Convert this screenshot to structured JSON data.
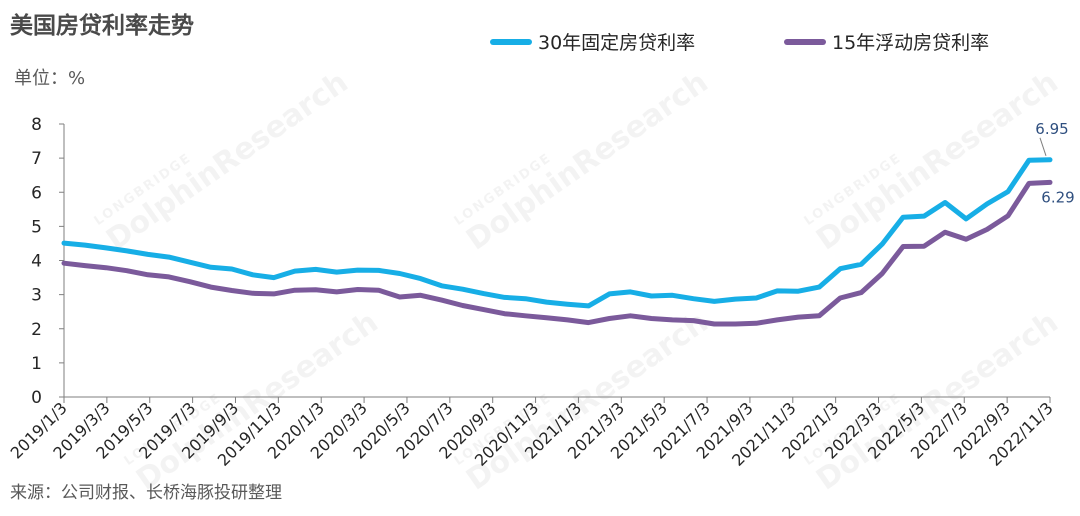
{
  "chart_data": {
    "type": "line",
    "title": "美国房贷利率走势",
    "unit_label": "单位：%",
    "source": "来源：公司财报、长桥海豚投研整理",
    "watermark": {
      "small": "LONGBRIDGE",
      "large": "DolphinResearch"
    },
    "ylim": [
      0,
      8
    ],
    "yticks": [
      "0",
      "1",
      "2",
      "3",
      "4",
      "5",
      "6",
      "7",
      "8"
    ],
    "x_tick_labels": [
      "2019/1/3",
      "2019/3/3",
      "2019/5/3",
      "2019/7/3",
      "2019/9/3",
      "2019/11/3",
      "2020/1/3",
      "2020/3/3",
      "2020/5/3",
      "2020/7/3",
      "2020/9/3",
      "2020/11/3",
      "2021/1/3",
      "2021/3/3",
      "2021/5/3",
      "2021/7/3",
      "2021/9/3",
      "2021/11/3",
      "2022/1/3",
      "2022/3/3",
      "2022/5/3",
      "2022/7/3",
      "2022/9/3",
      "2022/11/3"
    ],
    "grid": false,
    "legend_position": "top-right",
    "series": [
      {
        "name": "30年固定房贷利率",
        "color": "#17aee6",
        "values": [
          4.51,
          4.45,
          4.37,
          4.28,
          4.18,
          4.1,
          3.95,
          3.8,
          3.75,
          3.58,
          3.5,
          3.69,
          3.74,
          3.66,
          3.72,
          3.71,
          3.62,
          3.47,
          3.26,
          3.16,
          3.03,
          2.92,
          2.88,
          2.78,
          2.72,
          2.67,
          3.02,
          3.08,
          2.96,
          2.98,
          2.88,
          2.8,
          2.87,
          2.9,
          3.11,
          3.1,
          3.22,
          3.76,
          3.89,
          4.48,
          5.27,
          5.3,
          5.7,
          5.22,
          5.66,
          6.02,
          6.94,
          6.95
        ],
        "end_label": "6.95"
      },
      {
        "name": "15年浮动房贷利率",
        "color": "#7b5a9b",
        "values": [
          3.92,
          3.85,
          3.79,
          3.7,
          3.58,
          3.52,
          3.38,
          3.22,
          3.12,
          3.04,
          3.02,
          3.13,
          3.14,
          3.08,
          3.15,
          3.13,
          2.93,
          2.98,
          2.84,
          2.68,
          2.56,
          2.44,
          2.38,
          2.32,
          2.26,
          2.18,
          2.3,
          2.38,
          2.3,
          2.26,
          2.24,
          2.14,
          2.14,
          2.16,
          2.26,
          2.34,
          2.38,
          2.9,
          3.06,
          3.62,
          4.41,
          4.42,
          4.83,
          4.62,
          4.91,
          5.31,
          6.26,
          6.29
        ],
        "end_label": "6.29"
      }
    ]
  }
}
